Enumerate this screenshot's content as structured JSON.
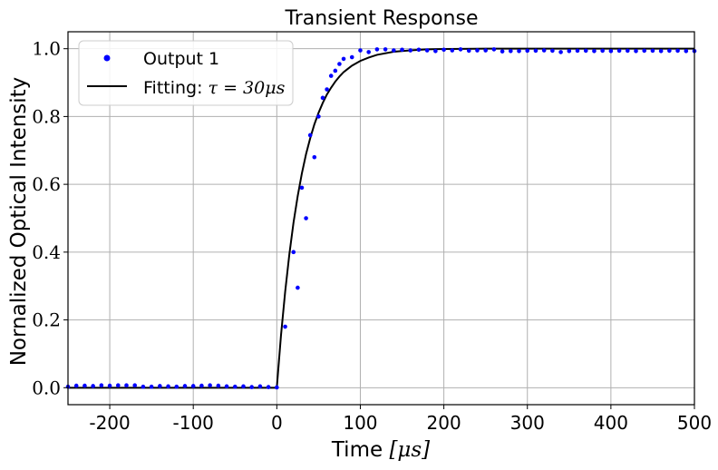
{
  "chart_data": {
    "type": "scatter",
    "title": "Transient Response",
    "xlabel_text": "Time ",
    "xlabel_math": "[μs]",
    "ylabel": "Nornalized Optical Intensity",
    "xlim": [
      -250,
      500
    ],
    "ylim": [
      -0.05,
      1.05
    ],
    "xticks": [
      -200,
      -100,
      0,
      100,
      200,
      300,
      400,
      500
    ],
    "xtick_labels": [
      "-200",
      "-100",
      "0",
      "100",
      "200",
      "300",
      "400",
      "500"
    ],
    "yticks": [
      0.0,
      0.2,
      0.4,
      0.6,
      0.8,
      1.0
    ],
    "ytick_labels": [
      "0.0",
      "0.2",
      "0.4",
      "0.6",
      "0.8",
      "1.0"
    ],
    "grid": true,
    "legend_position": "top-left",
    "series": [
      {
        "name": "Output 1",
        "kind": "scatter",
        "color": "#0000ff",
        "x": [
          -250,
          -240,
          -230,
          -220,
          -210,
          -200,
          -190,
          -180,
          -170,
          -160,
          -150,
          -140,
          -130,
          -120,
          -110,
          -100,
          -90,
          -80,
          -70,
          -60,
          -50,
          -40,
          -30,
          -20,
          -10,
          0,
          10,
          20,
          25,
          30,
          35,
          40,
          45,
          50,
          55,
          60,
          65,
          70,
          75,
          80,
          90,
          100,
          110,
          120,
          130,
          140,
          150,
          160,
          170,
          180,
          190,
          200,
          210,
          220,
          230,
          240,
          250,
          260,
          270,
          280,
          290,
          300,
          310,
          320,
          330,
          340,
          350,
          360,
          370,
          380,
          390,
          400,
          410,
          420,
          430,
          440,
          450,
          460,
          470,
          480,
          490,
          500
        ],
        "y": [
          0.003,
          0.006,
          0.006,
          0.005,
          0.007,
          0.006,
          0.007,
          0.007,
          0.007,
          0.003,
          0.003,
          0.005,
          0.004,
          0.003,
          0.005,
          0.005,
          0.006,
          0.007,
          0.006,
          0.004,
          0.003,
          0.004,
          0.002,
          0.004,
          0.002,
          0.001,
          0.18,
          0.4,
          0.295,
          0.59,
          0.5,
          0.745,
          0.68,
          0.8,
          0.855,
          0.88,
          0.92,
          0.935,
          0.955,
          0.97,
          0.975,
          0.995,
          0.99,
          0.998,
          0.998,
          0.995,
          0.997,
          0.995,
          0.997,
          0.995,
          0.993,
          0.997,
          0.995,
          0.998,
          0.994,
          0.995,
          0.995,
          0.998,
          0.992,
          0.993,
          0.993,
          0.994,
          0.994,
          0.995,
          0.994,
          0.99,
          0.993,
          0.994,
          0.994,
          0.993,
          0.994,
          0.993,
          0.994,
          0.994,
          0.993,
          0.994,
          0.994,
          0.993,
          0.994,
          0.994,
          0.993,
          0.993
        ]
      },
      {
        "name": "Fitting: τ = 30μs",
        "legend_text": "Fitting: ",
        "legend_math": "τ = 30μs",
        "kind": "line",
        "color": "#000000",
        "x": [
          -250,
          -200,
          -150,
          -100,
          -50,
          0,
          5,
          10,
          15,
          20,
          25,
          30,
          35,
          40,
          45,
          50,
          55,
          60,
          65,
          70,
          75,
          80,
          90,
          100,
          110,
          120,
          140,
          160,
          180,
          200,
          250,
          300,
          350,
          400,
          450,
          500
        ],
        "y": [
          0,
          0,
          0,
          0,
          0,
          0,
          0.154,
          0.283,
          0.393,
          0.487,
          0.565,
          0.632,
          0.689,
          0.736,
          0.777,
          0.811,
          0.84,
          0.865,
          0.885,
          0.903,
          0.918,
          0.931,
          0.95,
          0.964,
          0.974,
          0.982,
          0.991,
          0.995,
          0.998,
          0.999,
          1.0,
          1.0,
          1.0,
          1.0,
          1.0,
          1.0
        ]
      }
    ]
  }
}
